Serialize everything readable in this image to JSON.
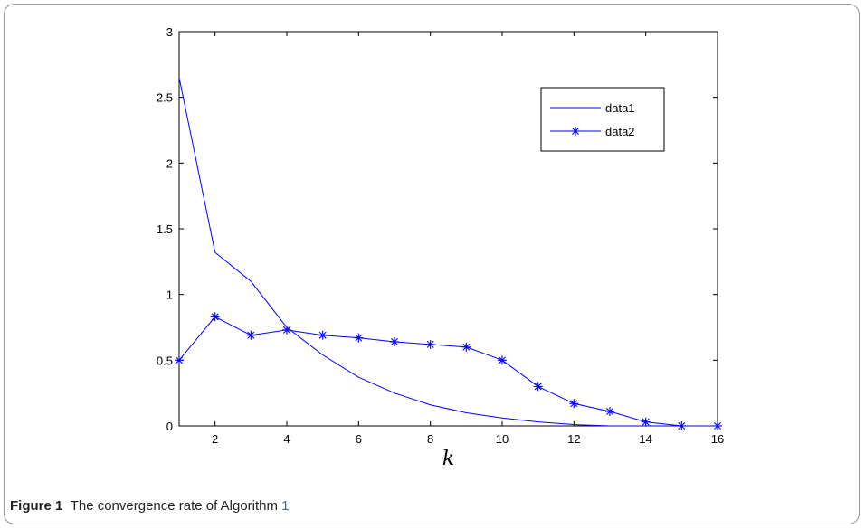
{
  "figure": {
    "label": "Figure 1",
    "caption_text": "The convergence rate of Algorithm",
    "caption_ref": "1"
  },
  "chart_data": {
    "type": "line",
    "title": "",
    "xlabel": "k",
    "ylabel": "",
    "xlim": [
      1,
      16
    ],
    "ylim": [
      0,
      3
    ],
    "xticks": [
      2,
      4,
      6,
      8,
      10,
      12,
      14,
      16
    ],
    "xtick_labels": [
      "2",
      "4",
      "6",
      "8",
      "10",
      "12",
      "14",
      "16"
    ],
    "yticks": [
      0,
      0.5,
      1,
      1.5,
      2,
      2.5,
      3
    ],
    "ytick_labels": [
      "0",
      "0.5",
      "1",
      "1.5",
      "2",
      "2.5",
      "3"
    ],
    "grid": false,
    "legend_position": "top-right",
    "line_color": "#0000ff",
    "series": [
      {
        "name": "data1",
        "marker": "none",
        "x": [
          1,
          2,
          3,
          4,
          5,
          6,
          7,
          8,
          9,
          10,
          11,
          12,
          13,
          14,
          15,
          16
        ],
        "values": [
          2.65,
          1.32,
          1.1,
          0.75,
          0.54,
          0.37,
          0.25,
          0.16,
          0.1,
          0.06,
          0.03,
          0.01,
          0.0,
          0.0,
          0.0,
          0.0
        ]
      },
      {
        "name": "data2",
        "marker": "asterisk",
        "x": [
          1,
          2,
          3,
          4,
          5,
          6,
          7,
          8,
          9,
          10,
          11,
          12,
          13,
          14,
          15,
          16
        ],
        "values": [
          0.5,
          0.83,
          0.69,
          0.73,
          0.69,
          0.67,
          0.64,
          0.62,
          0.6,
          0.5,
          0.3,
          0.17,
          0.11,
          0.03,
          0.0,
          0.0
        ]
      }
    ]
  }
}
